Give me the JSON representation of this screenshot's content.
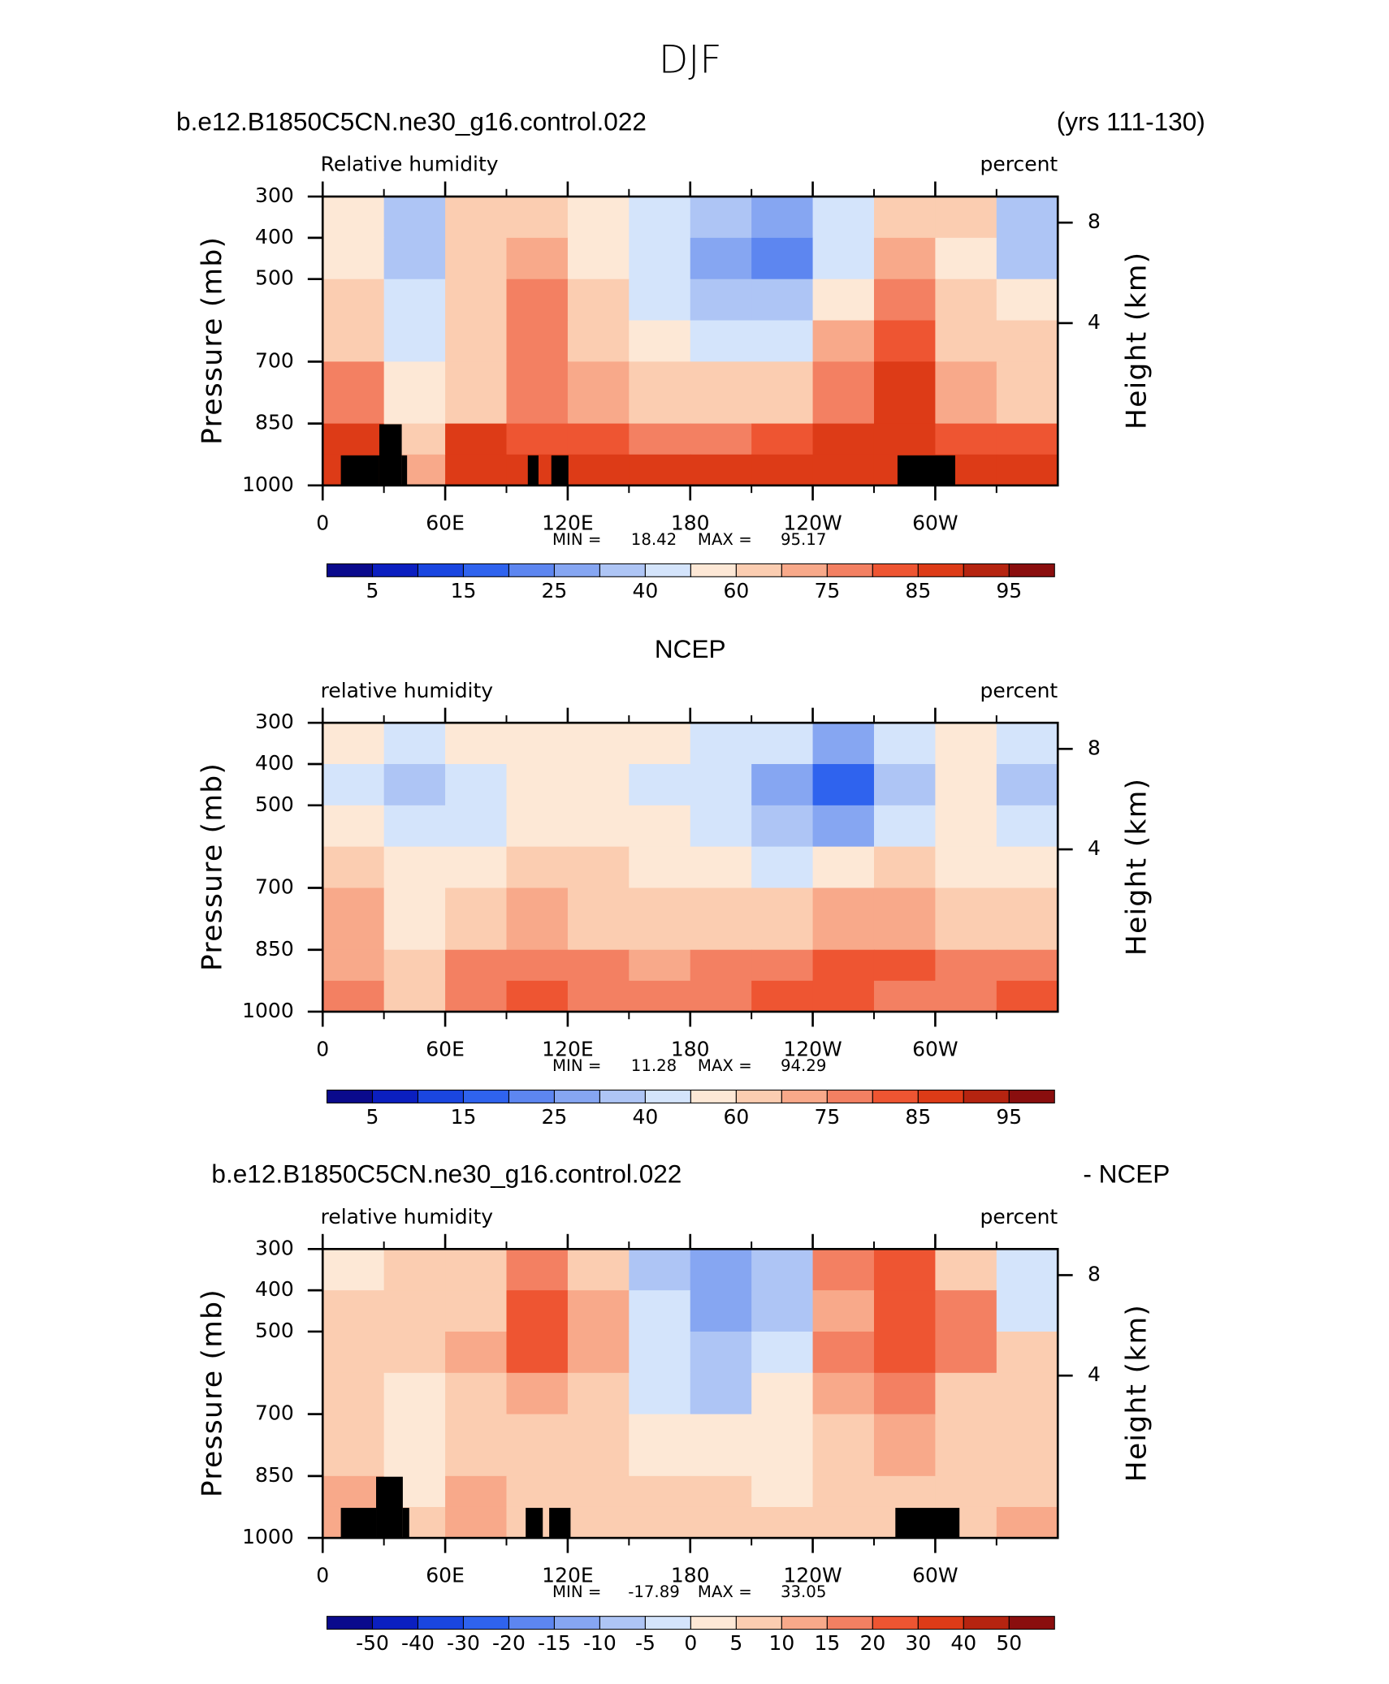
{
  "chart_data": {
    "type": "contour",
    "title": "DJF",
    "colors": [
      "#0a0a8c",
      "#0b1fc0",
      "#1a46e0",
      "#2f63ee",
      "#5d86f0",
      "#86a6f2",
      "#aec5f5",
      "#d4e4fb",
      "#fde8d6",
      "#fbcdb1",
      "#f8a98a",
      "#f38062",
      "#ee5532",
      "#dd3b17",
      "#b52410",
      "#8a0e0e"
    ],
    "panels": [
      {
        "title_left": "b.e12.B1850C5CN.ne30_g16.control.022",
        "title_right": "(yrs 111-130)",
        "variable": "Relative humidity",
        "units": "percent",
        "y_label": "Pressure (mb)",
        "y2_label": "Height (km)",
        "ylim": [
          300,
          1000
        ],
        "yticks": [
          300,
          400,
          500,
          700,
          850,
          1000
        ],
        "y2ticks": [
          8,
          4
        ],
        "xlim": [
          0,
          360
        ],
        "xticks": [
          0,
          {
            "value": 60,
            "label": "60E"
          },
          {
            "value": 120,
            "label": "120E"
          },
          {
            "value": 180,
            "label": "180"
          },
          {
            "value": 240,
            "label": "120W"
          },
          {
            "value": 300,
            "label": "60W"
          }
        ],
        "min_label": "MIN =",
        "min": 18.42,
        "max_label": "MAX =",
        "max": 95.17,
        "levels": [
          5,
          10,
          15,
          20,
          25,
          30,
          40,
          50,
          60,
          70,
          75,
          80,
          85,
          90,
          95
        ],
        "label_step": 2,
        "lon_edges": [
          0,
          30,
          60,
          90,
          120,
          150,
          180,
          210,
          240,
          270,
          300,
          330,
          360
        ],
        "p_edges": [
          300,
          400,
          500,
          600,
          700,
          850,
          925,
          1000
        ],
        "field": [
          [
            50,
            35,
            60,
            65,
            55,
            40,
            30,
            25,
            45,
            65,
            60,
            30
          ],
          [
            55,
            35,
            60,
            70,
            55,
            40,
            28,
            22,
            45,
            70,
            55,
            35
          ],
          [
            65,
            40,
            62,
            75,
            60,
            45,
            35,
            30,
            55,
            75,
            62,
            50
          ],
          [
            68,
            45,
            62,
            75,
            62,
            50,
            42,
            45,
            70,
            80,
            65,
            62
          ],
          [
            75,
            55,
            68,
            78,
            72,
            62,
            60,
            65,
            78,
            85,
            72,
            68
          ],
          [
            85,
            60,
            85,
            82,
            80,
            78,
            78,
            80,
            85,
            88,
            82,
            80
          ],
          [
            88,
            70,
            88,
            85,
            87,
            87,
            87,
            85,
            88,
            85,
            85,
            87
          ]
        ]
      },
      {
        "title": "NCEP",
        "variable": "relative humidity",
        "units": "percent",
        "y_label": "Pressure (mb)",
        "y2_label": "Height (km)",
        "ylim": [
          300,
          1000
        ],
        "yticks": [
          300,
          400,
          500,
          700,
          850,
          1000
        ],
        "y2ticks": [
          8,
          4
        ],
        "xlim": [
          0,
          360
        ],
        "xticks": [
          0,
          {
            "value": 60,
            "label": "60E"
          },
          {
            "value": 120,
            "label": "120E"
          },
          {
            "value": 180,
            "label": "180"
          },
          {
            "value": 240,
            "label": "120W"
          },
          {
            "value": 300,
            "label": "60W"
          }
        ],
        "min_label": "MIN =",
        "min": 11.28,
        "max_label": "MAX =",
        "max": 94.29,
        "levels": [
          5,
          10,
          15,
          20,
          25,
          30,
          40,
          50,
          60,
          70,
          75,
          80,
          85,
          90,
          95
        ],
        "label_step": 2,
        "lon_edges": [
          0,
          30,
          60,
          90,
          120,
          150,
          180,
          210,
          240,
          270,
          300,
          330,
          360
        ],
        "p_edges": [
          300,
          400,
          500,
          600,
          700,
          850,
          925,
          1000
        ],
        "field": [
          [
            50,
            40,
            55,
            58,
            58,
            55,
            48,
            40,
            25,
            40,
            55,
            40
          ],
          [
            45,
            35,
            45,
            55,
            50,
            45,
            40,
            25,
            15,
            35,
            50,
            35
          ],
          [
            55,
            40,
            45,
            55,
            55,
            52,
            40,
            30,
            25,
            45,
            50,
            45
          ],
          [
            65,
            50,
            50,
            65,
            62,
            58,
            55,
            45,
            55,
            65,
            50,
            55
          ],
          [
            70,
            55,
            60,
            70,
            68,
            65,
            62,
            65,
            72,
            72,
            65,
            65
          ],
          [
            72,
            60,
            75,
            78,
            75,
            72,
            75,
            78,
            80,
            80,
            75,
            75
          ],
          [
            75,
            60,
            78,
            80,
            78,
            75,
            78,
            80,
            80,
            78,
            78,
            80
          ]
        ]
      },
      {
        "title_left": "b.e12.B1850C5CN.ne30_g16.control.022",
        "title_right": "- NCEP",
        "variable": "relative humidity",
        "units": "percent",
        "y_label": "Pressure (mb)",
        "y2_label": "Height (km)",
        "ylim": [
          300,
          1000
        ],
        "yticks": [
          300,
          400,
          500,
          700,
          850,
          1000
        ],
        "y2ticks": [
          8,
          4
        ],
        "xlim": [
          0,
          360
        ],
        "xticks": [
          0,
          {
            "value": 60,
            "label": "60E"
          },
          {
            "value": 120,
            "label": "120E"
          },
          {
            "value": 180,
            "label": "180"
          },
          {
            "value": 240,
            "label": "120W"
          },
          {
            "value": 300,
            "label": "60W"
          }
        ],
        "min_label": "MIN =",
        "min": -17.89,
        "max_label": "MAX =",
        "max": 33.05,
        "levels": [
          -50,
          -40,
          -30,
          -20,
          -15,
          -10,
          -5,
          0,
          5,
          10,
          15,
          20,
          30,
          40,
          50
        ],
        "label_step": 1,
        "lon_edges": [
          0,
          30,
          60,
          90,
          120,
          150,
          180,
          210,
          240,
          270,
          300,
          330,
          360
        ],
        "p_edges": [
          300,
          400,
          500,
          600,
          700,
          850,
          925,
          1000
        ],
        "field": [
          [
            3,
            5,
            5,
            15,
            5,
            -10,
            -15,
            -10,
            15,
            20,
            5,
            -5
          ],
          [
            5,
            5,
            8,
            20,
            10,
            -5,
            -15,
            -10,
            10,
            25,
            15,
            -5
          ],
          [
            8,
            5,
            10,
            20,
            10,
            -3,
            -8,
            -5,
            15,
            20,
            15,
            5
          ],
          [
            5,
            3,
            8,
            10,
            5,
            -5,
            -10,
            0,
            10,
            15,
            8,
            8
          ],
          [
            7,
            3,
            5,
            5,
            5,
            2,
            0,
            2,
            5,
            12,
            5,
            5
          ],
          [
            12,
            3,
            10,
            5,
            5,
            5,
            5,
            3,
            5,
            5,
            8,
            8
          ],
          [
            12,
            5,
            10,
            5,
            5,
            8,
            8,
            5,
            5,
            5,
            5,
            10
          ]
        ]
      }
    ]
  }
}
